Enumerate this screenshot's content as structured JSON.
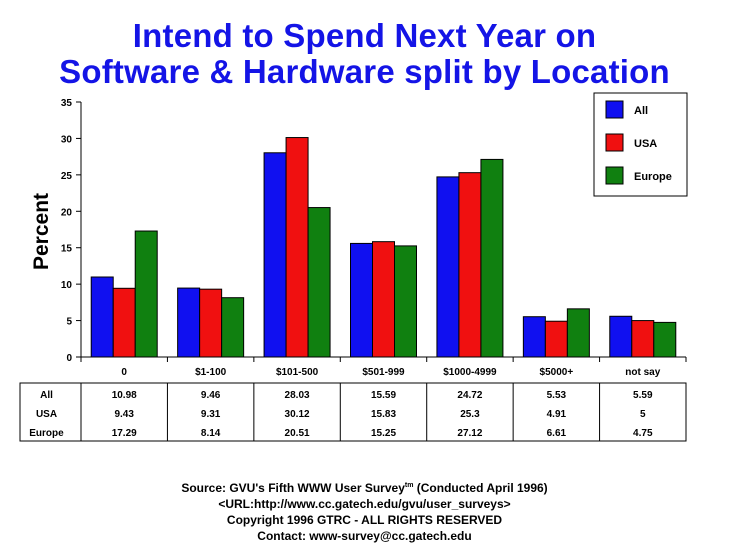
{
  "title_line1": "Intend to Spend Next Year on",
  "title_line2": "Software & Hardware split by Location",
  "chart_data": {
    "type": "bar",
    "title": "Intend to Spend Next Year on Software & Hardware split by Location",
    "ylabel": "Percent",
    "xlabel": "",
    "ylim": [
      0,
      35
    ],
    "yticks": [
      0,
      5,
      10,
      15,
      20,
      25,
      30,
      35
    ],
    "categories": [
      "0",
      "$1-100",
      "$101-500",
      "$501-999",
      "$1000-4999",
      "$5000+",
      "not say"
    ],
    "series": [
      {
        "name": "All",
        "color": "#1010f0",
        "values": [
          10.98,
          9.46,
          28.03,
          15.59,
          24.72,
          5.53,
          5.59
        ]
      },
      {
        "name": "USA",
        "color": "#f01010",
        "values": [
          9.43,
          9.31,
          30.12,
          15.83,
          25.3,
          4.91,
          5
        ]
      },
      {
        "name": "Europe",
        "color": "#108010",
        "values": [
          17.29,
          8.14,
          20.51,
          15.25,
          27.12,
          6.61,
          4.75
        ]
      }
    ],
    "table_values": [
      [
        "10.98",
        "9.46",
        "28.03",
        "15.59",
        "24.72",
        "5.53",
        "5.59"
      ],
      [
        "9.43",
        "9.31",
        "30.12",
        "15.83",
        "25.3",
        "4.91",
        "5"
      ],
      [
        "17.29",
        "8.14",
        "20.51",
        "15.25",
        "27.12",
        "6.61",
        "4.75"
      ]
    ],
    "grid": false,
    "legend_position": "top-right"
  },
  "footer": {
    "source_prefix": "Source: GVU's Fifth WWW User Survey",
    "source_sup": "tm",
    "source_suffix": "  (Conducted April 1996)",
    "url": "<URL:http://www.cc.gatech.edu/gvu/user_surveys>",
    "copyright": "Copyright 1996 GTRC -  ALL RIGHTS RESERVED",
    "contact": "Contact: www-survey@cc.gatech.edu"
  }
}
